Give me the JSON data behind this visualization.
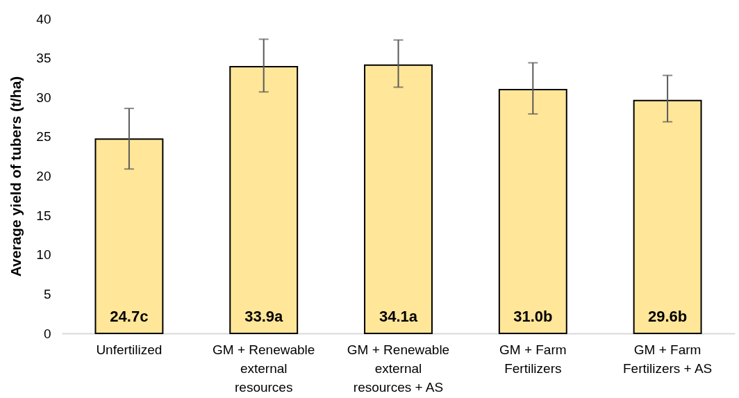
{
  "chart_data": {
    "type": "bar",
    "ylabel": "Average yield of tubers (t/ha)",
    "categories": [
      "Unfertilized",
      "GM + Renewable external resources",
      "GM + Renewable external resources + AS",
      "GM + Farm Fertilizers",
      "GM + Farm Fertilizers + AS"
    ],
    "values": [
      24.7,
      33.9,
      34.1,
      31.0,
      29.6
    ],
    "value_labels": [
      "24.7c",
      "33.9a",
      "34.1a",
      "31.0b",
      "29.6b"
    ],
    "errors": [
      [
        20.9,
        28.6
      ],
      [
        30.7,
        37.4
      ],
      [
        31.3,
        37.3
      ],
      [
        27.9,
        34.4
      ],
      [
        26.9,
        32.8
      ]
    ],
    "color": "#ffe699",
    "ylim": [
      0,
      40
    ],
    "yticks": [
      0,
      5,
      10,
      15,
      20,
      25,
      30,
      35,
      40
    ],
    "grid": false
  }
}
